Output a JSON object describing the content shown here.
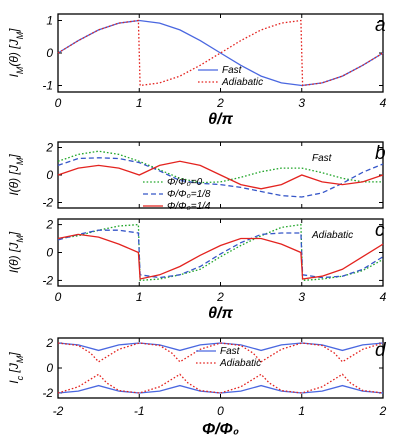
{
  "colors": {
    "fast": "#4a67e0",
    "adiabatic": "#e3231f",
    "phi0": "#22a62a",
    "phi18": "#3556c8",
    "phi14": "#e3231f",
    "axis": "#000000"
  },
  "chart_data": [
    {
      "id": "a",
      "type": "line",
      "panel_label": "a",
      "ylabel": "I_M(θ) [J_M]",
      "xlabel": "θ/π",
      "xlim": [
        0,
        4
      ],
      "ylim": [
        -1.2,
        1.2
      ],
      "xticks": [
        "0",
        "1",
        "2",
        "3",
        "4"
      ],
      "yticks": [
        "1",
        "0",
        "-1"
      ],
      "series": [
        {
          "name": "Fast",
          "style": "solid",
          "color": "#4a67e0",
          "x": [
            0,
            0.25,
            0.5,
            0.75,
            1,
            1.25,
            1.5,
            1.75,
            2,
            2.25,
            2.5,
            2.75,
            3,
            3.25,
            3.5,
            3.75,
            4
          ],
          "y": [
            0,
            0.38,
            0.71,
            0.92,
            1,
            0.92,
            0.71,
            0.38,
            0,
            -0.38,
            -0.71,
            -0.92,
            -1,
            -0.92,
            -0.71,
            -0.38,
            0
          ]
        },
        {
          "name": "Adiabatic",
          "style": "dotted",
          "color": "#e3231f",
          "x": [
            0,
            0.25,
            0.5,
            0.75,
            0.99,
            1.01,
            1.25,
            1.5,
            1.75,
            2,
            2.25,
            2.5,
            2.75,
            2.99,
            3.01,
            3.25,
            3.5,
            3.75,
            4
          ],
          "y": [
            0,
            0.38,
            0.71,
            0.92,
            1,
            -1,
            -0.92,
            -0.71,
            -0.38,
            0,
            0.38,
            0.71,
            0.92,
            1,
            -1,
            -0.92,
            -0.71,
            -0.38,
            0
          ]
        }
      ]
    },
    {
      "id": "b",
      "type": "line",
      "panel_label": "b",
      "annotation": "Fast",
      "ylabel": "I(θ) [J_M]",
      "xlabel": "",
      "xlim": [
        0,
        4
      ],
      "ylim": [
        -2.4,
        2.4
      ],
      "xticks": [
        "0",
        "1",
        "2",
        "3",
        "4"
      ],
      "yticks": [
        "2",
        "0",
        "-2"
      ],
      "series": [
        {
          "name": "Φ/Φ₀=0",
          "style": "dotted",
          "color": "#22a62a",
          "x": [
            0,
            0.25,
            0.5,
            0.75,
            1,
            1.25,
            1.5,
            1.75,
            2,
            2.25,
            2.5,
            2.75,
            3,
            3.25,
            3.5,
            3.75,
            4
          ],
          "y": [
            1,
            1.5,
            1.73,
            1.5,
            1,
            0.38,
            -0.24,
            -0.55,
            -0.5,
            -0.17,
            0.24,
            0.5,
            0.5,
            0.17,
            -0.24,
            -0.5,
            -0.5
          ]
        },
        {
          "name": "Φ/Φ₀=1/8",
          "style": "dashed",
          "color": "#3556c8",
          "x": [
            0,
            0.25,
            0.5,
            0.75,
            1,
            1.25,
            1.5,
            1.75,
            2,
            2.25,
            2.5,
            2.75,
            3,
            3.25,
            3.5,
            3.75,
            4
          ],
          "y": [
            0.7,
            1.2,
            1.25,
            1.2,
            0.9,
            0.3,
            -0.4,
            -0.6,
            -0.7,
            -0.9,
            -1.2,
            -1.5,
            -1.6,
            -1.3,
            -0.6,
            0.2,
            0.8
          ]
        },
        {
          "name": "Φ/Φ₀=1/4",
          "style": "solid",
          "color": "#e3231f",
          "x": [
            0,
            0.25,
            0.5,
            0.75,
            1,
            1.25,
            1.5,
            1.75,
            2,
            2.25,
            2.5,
            2.75,
            3,
            3.25,
            3.5,
            3.75,
            4
          ],
          "y": [
            0,
            0.5,
            0.7,
            0.5,
            0,
            0.7,
            1,
            0.7,
            0,
            -0.7,
            -1,
            -0.7,
            0,
            -0.5,
            -0.7,
            -0.5,
            0
          ]
        }
      ],
      "legend": {
        "placement": "center-left"
      }
    },
    {
      "id": "c",
      "type": "line",
      "panel_label": "c",
      "annotation": "Adiabatic",
      "ylabel": "I(θ) [J_M]",
      "xlabel": "θ/π",
      "xlim": [
        0,
        4
      ],
      "ylim": [
        -2.4,
        2.4
      ],
      "xticks": [
        "0",
        "1",
        "2",
        "3",
        "4"
      ],
      "yticks": [
        "2",
        "0",
        "-2"
      ],
      "series": [
        {
          "name": "Φ/Φ₀=0",
          "style": "dotted",
          "color": "#22a62a",
          "x": [
            0,
            0.25,
            0.5,
            0.75,
            0.99,
            1.01,
            1.25,
            1.5,
            1.75,
            2,
            2.25,
            2.5,
            2.75,
            2.99,
            3.01,
            3.25,
            3.5,
            3.75,
            4
          ],
          "y": [
            1,
            1.2,
            1.6,
            1.9,
            2,
            -2,
            -1.9,
            -1.6,
            -1.2,
            -0.3,
            0.5,
            1.2,
            1.8,
            2,
            -2,
            -1.9,
            -1.7,
            -1.3,
            -0.5
          ]
        },
        {
          "name": "Φ/Φ₀=1/8",
          "style": "dashed",
          "color": "#3556c8",
          "x": [
            0,
            0.25,
            0.5,
            0.75,
            0.99,
            1.01,
            1.25,
            1.5,
            1.75,
            2,
            2.25,
            2.5,
            2.75,
            2.99,
            3.01,
            3.25,
            3.5,
            3.75,
            4
          ],
          "y": [
            0.9,
            1.3,
            1.6,
            1.6,
            1.4,
            -1.6,
            -1.8,
            -1.6,
            -1,
            -0.1,
            0.7,
            1.3,
            1.4,
            1.4,
            -1.6,
            -1.8,
            -1.7,
            -1.2,
            -0.3
          ]
        },
        {
          "name": "Φ/Φ₀=1/4",
          "style": "solid",
          "color": "#e3231f",
          "x": [
            0,
            0.25,
            0.5,
            0.75,
            0.99,
            1.01,
            1.25,
            1.5,
            1.75,
            2,
            2.25,
            2.5,
            2.75,
            2.99,
            3.01,
            3.25,
            3.5,
            3.75,
            4
          ],
          "y": [
            1,
            1.3,
            1.1,
            0.6,
            0,
            -1.9,
            -1.6,
            -1,
            -0.2,
            0.5,
            1,
            1,
            0.6,
            0,
            -1.9,
            -1.7,
            -1.2,
            -0.3,
            0.6
          ]
        }
      ]
    },
    {
      "id": "d",
      "type": "line",
      "panel_label": "d",
      "ylabel": "I_c [J_M]",
      "xlabel": "Φ/Φ₀",
      "xlim": [
        -2,
        2
      ],
      "ylim": [
        -2.4,
        2.4
      ],
      "xticks": [
        "-2",
        "-1",
        "0",
        "1",
        "2"
      ],
      "yticks": [
        "2",
        "0",
        "-2"
      ],
      "series": [
        {
          "name": "Fast",
          "style": "solid",
          "color": "#4a67e0",
          "branch": "upper",
          "x": [
            -2,
            -1.75,
            -1.5,
            -1.25,
            -1,
            -0.75,
            -0.5,
            -0.25,
            0,
            0.25,
            0.5,
            0.75,
            1,
            1.25,
            1.5,
            1.75,
            2
          ],
          "y": [
            2,
            1.85,
            1.41,
            1.85,
            2,
            1.85,
            1.41,
            1.85,
            2,
            1.85,
            1.41,
            1.85,
            2,
            1.85,
            1.41,
            1.85,
            2
          ]
        },
        {
          "name": "Fast",
          "style": "solid",
          "color": "#4a67e0",
          "branch": "lower",
          "x": [
            -2,
            -1.75,
            -1.5,
            -1.25,
            -1,
            -0.75,
            -0.5,
            -0.25,
            0,
            0.25,
            0.5,
            0.75,
            1,
            1.25,
            1.5,
            1.75,
            2
          ],
          "y": [
            -2,
            -1.85,
            -1.41,
            -1.85,
            -2,
            -1.85,
            -1.41,
            -1.85,
            -2,
            -1.85,
            -1.41,
            -1.85,
            -2,
            -1.85,
            -1.41,
            -1.85,
            -2
          ]
        },
        {
          "name": "Adiabatic",
          "style": "dotted",
          "color": "#e3231f",
          "branch": "upper",
          "x": [
            -2,
            -1.75,
            -1.6,
            -1.5,
            -1.25,
            -1,
            -0.75,
            -0.6,
            -0.5,
            -0.25,
            0,
            0.25,
            0.4,
            0.5,
            0.75,
            1,
            1.25,
            1.4,
            1.5,
            1.75,
            2
          ],
          "y": [
            2,
            1.8,
            1.2,
            0.5,
            1.5,
            2,
            1.8,
            1.2,
            0.5,
            1.5,
            2,
            1.8,
            1.2,
            0.5,
            1.5,
            2,
            1.8,
            1.2,
            0.5,
            1.5,
            2
          ]
        },
        {
          "name": "Adiabatic",
          "style": "dotted",
          "color": "#e3231f",
          "branch": "lower",
          "x": [
            -2,
            -1.75,
            -1.5,
            -1.4,
            -1.25,
            -1,
            -0.75,
            -0.5,
            -0.4,
            -0.25,
            0,
            0.25,
            0.5,
            0.6,
            0.75,
            1,
            1.25,
            1.5,
            1.6,
            1.75,
            2
          ],
          "y": [
            -2,
            -1.5,
            -0.5,
            -1.2,
            -1.8,
            -2,
            -1.5,
            -0.5,
            -1.2,
            -1.8,
            -2,
            -1.5,
            -0.5,
            -1.2,
            -1.8,
            -2,
            -1.5,
            -0.5,
            -1.2,
            -1.8,
            -2
          ]
        }
      ]
    }
  ]
}
